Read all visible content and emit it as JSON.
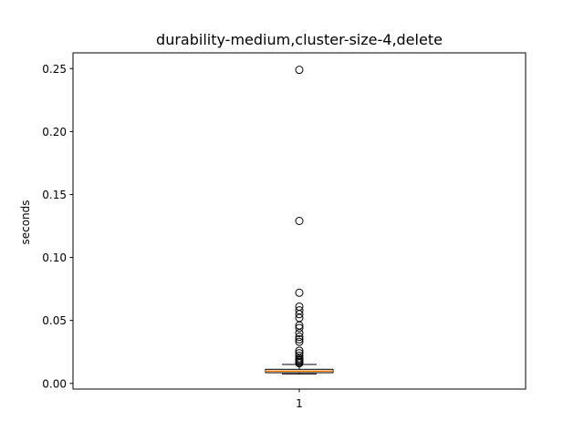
{
  "chart_data": {
    "type": "box",
    "title": "durability-medium,cluster-size-4,delete",
    "xlabel": "",
    "ylabel": "seconds",
    "categories": [
      "1"
    ],
    "ylim": [
      -0.0045,
      0.2625
    ],
    "yticks": [
      0.0,
      0.05,
      0.1,
      0.15,
      0.2,
      0.25
    ],
    "ytick_labels": [
      "0.00",
      "0.05",
      "0.10",
      "0.15",
      "0.20",
      "0.25"
    ],
    "grid": false,
    "box": {
      "whisker_low": 0.0075,
      "q1": 0.0085,
      "median": 0.0097,
      "q3": 0.0112,
      "whisker_high": 0.015,
      "outliers": [
        0.249,
        0.129,
        0.072,
        0.061,
        0.058,
        0.055,
        0.052,
        0.046,
        0.044,
        0.04,
        0.037,
        0.035,
        0.033,
        0.026,
        0.024,
        0.022,
        0.02,
        0.019,
        0.018,
        0.017,
        0.016
      ]
    },
    "colors": {
      "median": "#ff7f0e",
      "box": "#000000",
      "outlier": "#000000"
    }
  }
}
